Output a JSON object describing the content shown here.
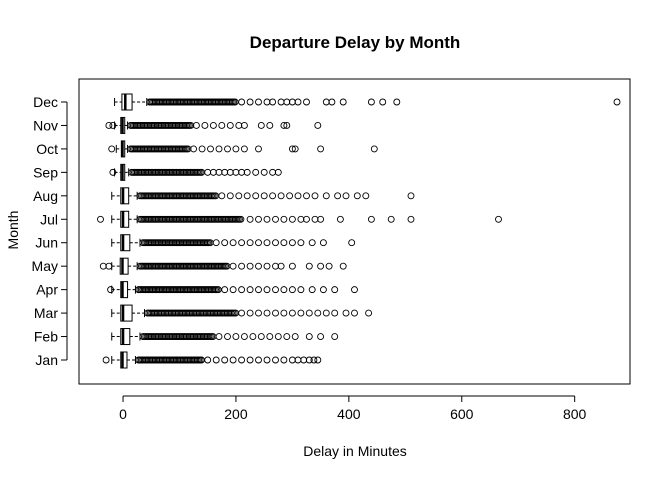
{
  "chart_data": {
    "type": "boxplot",
    "orientation": "horizontal",
    "title": "Departure Delay by Month",
    "xlabel": "Delay in Minutes",
    "ylabel": "Month",
    "xlim": [
      -78,
      898
    ],
    "x_ticks": [
      0,
      200,
      400,
      600,
      800
    ],
    "grid": false,
    "legend": "none",
    "categories": [
      "Jan",
      "Feb",
      "Mar",
      "Apr",
      "May",
      "Jun",
      "Jul",
      "Aug",
      "Sep",
      "Oct",
      "Nov",
      "Dec"
    ],
    "series": [
      {
        "category": "Jan",
        "q1": -4,
        "median": -1,
        "q3": 7,
        "whisker_low": -20,
        "whisker_high": 22,
        "outliers_dense_to": 140,
        "outliers": [
          -30,
          150,
          165,
          180,
          195,
          210,
          225,
          240,
          255,
          270,
          285,
          300,
          310,
          320,
          330,
          338,
          345
        ]
      },
      {
        "category": "Feb",
        "q1": -4,
        "median": 0,
        "q3": 12,
        "whisker_low": -20,
        "whisker_high": 30,
        "outliers_dense_to": 160,
        "outliers": [
          170,
          185,
          200,
          215,
          230,
          245,
          260,
          275,
          290,
          305,
          330,
          350,
          375
        ]
      },
      {
        "category": "Mar",
        "q1": -4,
        "median": 0,
        "q3": 16,
        "whisker_low": -20,
        "whisker_high": 38,
        "outliers_dense_to": 200,
        "outliers": [
          210,
          225,
          240,
          255,
          270,
          285,
          300,
          315,
          330,
          345,
          360,
          375,
          395,
          410,
          435
        ]
      },
      {
        "category": "Apr",
        "q1": -4,
        "median": -1,
        "q3": 8,
        "whisker_low": -20,
        "whisker_high": 22,
        "outliers_dense_to": 170,
        "outliers": [
          -22,
          180,
          195,
          210,
          225,
          240,
          255,
          270,
          285,
          300,
          315,
          335,
          355,
          375,
          410
        ]
      },
      {
        "category": "May",
        "q1": -5,
        "median": -1,
        "q3": 9,
        "whisker_low": -20,
        "whisker_high": 25,
        "outliers_dense_to": 185,
        "outliers": [
          -35,
          -25,
          195,
          210,
          225,
          240,
          255,
          270,
          280,
          300,
          330,
          350,
          365,
          390
        ]
      },
      {
        "category": "Jun",
        "q1": -4,
        "median": 0,
        "q3": 12,
        "whisker_low": -20,
        "whisker_high": 30,
        "outliers_dense_to": 155,
        "outliers": [
          165,
          180,
          195,
          210,
          225,
          240,
          255,
          270,
          285,
          300,
          315,
          335,
          355,
          405
        ]
      },
      {
        "category": "Jul",
        "q1": -4,
        "median": 0,
        "q3": 10,
        "whisker_low": -20,
        "whisker_high": 25,
        "outliers_dense_to": 210,
        "outliers": [
          -40,
          225,
          240,
          255,
          270,
          285,
          300,
          315,
          325,
          340,
          350,
          385,
          440,
          475,
          510,
          665
        ]
      },
      {
        "category": "Aug",
        "q1": -4,
        "median": 0,
        "q3": 10,
        "whisker_low": -20,
        "whisker_high": 25,
        "outliers_dense_to": 165,
        "outliers": [
          175,
          190,
          205,
          220,
          235,
          250,
          265,
          280,
          295,
          310,
          325,
          340,
          360,
          380,
          395,
          415,
          430,
          510
        ]
      },
      {
        "category": "Sep",
        "q1": -4,
        "median": -1,
        "q3": 3,
        "whisker_low": -15,
        "whisker_high": 10,
        "outliers_dense_to": 140,
        "outliers": [
          -18,
          150,
          160,
          170,
          180,
          190,
          200,
          210,
          220,
          235,
          250,
          265,
          275
        ]
      },
      {
        "category": "Oct",
        "q1": -3,
        "median": -1,
        "q3": 3,
        "whisker_low": -12,
        "whisker_high": 8,
        "outliers_dense_to": 115,
        "outliers": [
          -20,
          125,
          140,
          155,
          170,
          185,
          200,
          215,
          240,
          300,
          305,
          350,
          445
        ]
      },
      {
        "category": "Nov",
        "q1": -4,
        "median": -1,
        "q3": 3,
        "whisker_low": -15,
        "whisker_high": 8,
        "outliers_dense_to": 120,
        "outliers": [
          -25,
          -18,
          130,
          145,
          160,
          175,
          190,
          205,
          215,
          245,
          260,
          285,
          290,
          345
        ]
      },
      {
        "category": "Dec",
        "q1": -2,
        "median": 4,
        "q3": 16,
        "whisker_low": -15,
        "whisker_high": 42,
        "outliers_dense_to": 200,
        "outliers": [
          210,
          225,
          240,
          255,
          265,
          280,
          290,
          300,
          310,
          325,
          360,
          370,
          390,
          440,
          460,
          485,
          875
        ]
      }
    ]
  }
}
